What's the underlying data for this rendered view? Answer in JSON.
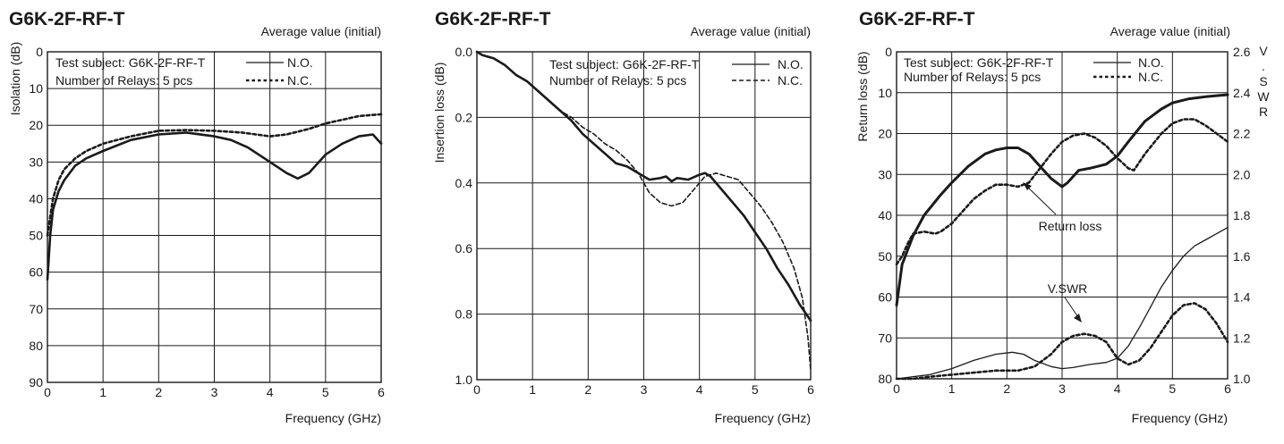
{
  "chart_data": [
    {
      "type": "line",
      "title": "G6K-2F-RF-T",
      "subtitle": "Average value (initial)",
      "xlabel": "Frequency (GHz)",
      "ylabel": "Isolation (dB)",
      "xlim": [
        0,
        6
      ],
      "ylim": [
        0,
        90
      ],
      "y_inverted": true,
      "grid": true,
      "x_ticks": [
        "0",
        "1",
        "2",
        "3",
        "4",
        "5",
        "6"
      ],
      "y_ticks": [
        "0",
        "10",
        "20",
        "30",
        "40",
        "50",
        "60",
        "70",
        "80",
        "90"
      ],
      "info": [
        "Test subject: G6K-2F-RF-T",
        "Number of Relays: 5 pcs"
      ],
      "legend_position": "top-right",
      "legend": [
        {
          "label": "N.O.",
          "style": "solid"
        },
        {
          "label": "N.C.",
          "style": "dotted"
        }
      ],
      "series": [
        {
          "name": "N.O.",
          "style": "solid",
          "x": [
            0,
            0.05,
            0.1,
            0.2,
            0.3,
            0.5,
            0.7,
            1.0,
            1.5,
            2.0,
            2.5,
            3.0,
            3.3,
            3.6,
            4.0,
            4.3,
            4.5,
            4.7,
            5.0,
            5.3,
            5.6,
            5.85,
            6.0
          ],
          "y": [
            62,
            50,
            43,
            38,
            35,
            31,
            29,
            27,
            24,
            22.5,
            22,
            23,
            24,
            26,
            30,
            33,
            34.5,
            33,
            28,
            25,
            23,
            22.5,
            25
          ]
        },
        {
          "name": "N.C.",
          "style": "dotted",
          "x": [
            0,
            0.05,
            0.1,
            0.2,
            0.3,
            0.5,
            0.7,
            1.0,
            1.5,
            2.0,
            2.5,
            3.0,
            3.5,
            4.0,
            4.3,
            4.7,
            5.0,
            5.3,
            5.6,
            6.0
          ],
          "y": [
            50,
            45,
            40,
            35,
            32,
            29,
            27,
            25,
            23,
            21.5,
            21.3,
            21.5,
            22,
            23,
            22.5,
            21,
            19.5,
            18.5,
            17.5,
            17
          ]
        }
      ]
    },
    {
      "type": "line",
      "title": "G6K-2F-RF-T",
      "subtitle": "Average value (initial)",
      "xlabel": "Frequency (GHz)",
      "ylabel": "Insertion loss (dB)",
      "xlim": [
        0,
        6
      ],
      "ylim": [
        0,
        1.0
      ],
      "y_inverted": true,
      "grid": true,
      "x_ticks": [
        "0",
        "1",
        "2",
        "3",
        "4",
        "5",
        "6"
      ],
      "y_ticks": [
        "0.0",
        "0.2",
        "0.4",
        "0.6",
        "0.8",
        "1.0"
      ],
      "info": [
        "Test subject: G6K-2F-RF-T",
        "Number of Relays: 5 pcs"
      ],
      "legend_position": "top-right",
      "legend": [
        {
          "label": "N.O.",
          "style": "solid"
        },
        {
          "label": "N.C.",
          "style": "dashed"
        }
      ],
      "series": [
        {
          "name": "N.O.",
          "style": "solid",
          "x": [
            0,
            0.1,
            0.3,
            0.5,
            0.7,
            0.9,
            1.1,
            1.3,
            1.5,
            1.7,
            1.9,
            2.1,
            2.3,
            2.5,
            2.7,
            2.9,
            3.1,
            3.3,
            3.4,
            3.5,
            3.6,
            3.8,
            4.0,
            4.1,
            4.2,
            4.4,
            4.6,
            4.8,
            5.0,
            5.2,
            5.4,
            5.6,
            5.8,
            6.0
          ],
          "y": [
            0.0,
            0.01,
            0.02,
            0.04,
            0.07,
            0.09,
            0.12,
            0.15,
            0.18,
            0.21,
            0.25,
            0.28,
            0.31,
            0.34,
            0.35,
            0.37,
            0.39,
            0.385,
            0.38,
            0.395,
            0.385,
            0.39,
            0.375,
            0.37,
            0.38,
            0.42,
            0.46,
            0.5,
            0.55,
            0.6,
            0.66,
            0.71,
            0.77,
            0.82
          ]
        },
        {
          "name": "N.C.",
          "style": "dashed",
          "x": [
            0,
            0.1,
            0.3,
            0.5,
            0.7,
            0.9,
            1.1,
            1.3,
            1.5,
            1.7,
            1.9,
            2.1,
            2.3,
            2.5,
            2.7,
            2.9,
            3.1,
            3.3,
            3.5,
            3.7,
            3.9,
            4.1,
            4.3,
            4.5,
            4.7,
            4.9,
            5.1,
            5.3,
            5.5,
            5.7,
            5.85,
            5.95,
            6.0
          ],
          "y": [
            0.0,
            0.01,
            0.02,
            0.04,
            0.07,
            0.09,
            0.12,
            0.15,
            0.18,
            0.2,
            0.23,
            0.25,
            0.28,
            0.3,
            0.33,
            0.37,
            0.43,
            0.46,
            0.47,
            0.46,
            0.42,
            0.38,
            0.37,
            0.38,
            0.39,
            0.43,
            0.47,
            0.52,
            0.58,
            0.66,
            0.75,
            0.87,
            0.97
          ]
        }
      ]
    },
    {
      "type": "line",
      "title": "G6K-2F-RF-T",
      "subtitle": "Average value (initial)",
      "xlabel": "Frequency (GHz)",
      "ylabel": "Return loss (dB)",
      "y2label": "V.SWR",
      "xlim": [
        0,
        6
      ],
      "ylim": [
        0,
        80
      ],
      "y2lim": [
        1.0,
        2.6
      ],
      "y_inverted": true,
      "grid": true,
      "x_ticks": [
        "0",
        "1",
        "2",
        "3",
        "4",
        "5",
        "6"
      ],
      "y_ticks": [
        "0",
        "10",
        "20",
        "30",
        "40",
        "50",
        "60",
        "70",
        "80"
      ],
      "y2_ticks": [
        "2.6",
        "2.4",
        "2.2",
        "2.0",
        "1.8",
        "1.6",
        "1.4",
        "1.2",
        "1.0"
      ],
      "info": [
        "Test subject: G6K-2F-RF-T",
        "Number of Relays: 5 pcs"
      ],
      "legend_position": "top-right",
      "legend": [
        {
          "label": "N.O.",
          "style": "solid"
        },
        {
          "label": "N.C.",
          "style": "dotted"
        }
      ],
      "annotations": [
        "Return loss",
        "V.SWR"
      ],
      "series": [
        {
          "name": "N.O.",
          "style": "solid-bold",
          "axis": "left",
          "x": [
            0,
            0.1,
            0.3,
            0.5,
            0.8,
            1.0,
            1.3,
            1.6,
            1.8,
            2.0,
            2.2,
            2.4,
            2.6,
            2.8,
            3.0,
            3.1,
            3.3,
            3.5,
            3.8,
            4.0,
            4.2,
            4.5,
            4.8,
            5.0,
            5.3,
            5.6,
            6.0
          ],
          "y": [
            62,
            52,
            45,
            40,
            35,
            32,
            28,
            25,
            24,
            23.5,
            23.5,
            25,
            28,
            31,
            33,
            32,
            29,
            28.5,
            27.5,
            25.5,
            22,
            17,
            14,
            12.5,
            11.5,
            11,
            10.5
          ]
        },
        {
          "name": "N.C.",
          "style": "dotted",
          "axis": "left",
          "x": [
            0,
            0.1,
            0.2,
            0.3,
            0.5,
            0.7,
            0.8,
            1.0,
            1.2,
            1.4,
            1.6,
            1.8,
            2.0,
            2.2,
            2.4,
            2.6,
            2.8,
            3.0,
            3.2,
            3.4,
            3.6,
            3.8,
            4.0,
            4.2,
            4.3,
            4.5,
            4.8,
            5.0,
            5.2,
            5.4,
            5.6,
            5.8,
            6.0
          ],
          "y": [
            52,
            50,
            47,
            44.5,
            44,
            44.5,
            44,
            42,
            39,
            36,
            34,
            32.5,
            32.5,
            33,
            32,
            28.5,
            25,
            22,
            20.5,
            20,
            21,
            23,
            26,
            28.5,
            29,
            25,
            20,
            17.5,
            16.5,
            16.5,
            18,
            20,
            22
          ]
        },
        {
          "name": "N.O.",
          "style": "solid-thin",
          "axis": "right",
          "x": [
            0,
            0.3,
            0.6,
            1.0,
            1.4,
            1.8,
            2.1,
            2.3,
            2.5,
            2.8,
            3.0,
            3.2,
            3.5,
            3.8,
            4.0,
            4.2,
            4.4,
            4.6,
            4.8,
            5.0,
            5.2,
            5.4,
            5.6,
            5.8,
            6.0
          ],
          "y": [
            1.0,
            1.01,
            1.02,
            1.05,
            1.09,
            1.12,
            1.13,
            1.12,
            1.09,
            1.06,
            1.05,
            1.055,
            1.07,
            1.08,
            1.1,
            1.16,
            1.25,
            1.35,
            1.45,
            1.53,
            1.6,
            1.65,
            1.68,
            1.71,
            1.74
          ]
        },
        {
          "name": "N.C.",
          "style": "dotted",
          "axis": "right",
          "x": [
            0,
            0.3,
            0.6,
            1.0,
            1.4,
            1.8,
            2.2,
            2.5,
            2.8,
            3.0,
            3.2,
            3.4,
            3.6,
            3.8,
            4.0,
            4.2,
            4.4,
            4.6,
            4.8,
            5.0,
            5.2,
            5.4,
            5.6,
            5.8,
            6.0
          ],
          "y": [
            1.0,
            1.0,
            1.01,
            1.02,
            1.03,
            1.04,
            1.04,
            1.06,
            1.12,
            1.18,
            1.21,
            1.22,
            1.21,
            1.18,
            1.1,
            1.07,
            1.09,
            1.15,
            1.23,
            1.31,
            1.36,
            1.37,
            1.34,
            1.27,
            1.18
          ]
        }
      ]
    }
  ]
}
